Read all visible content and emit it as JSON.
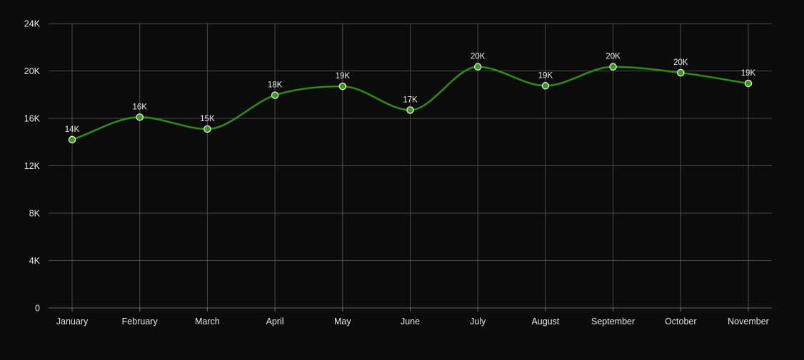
{
  "chart_data": {
    "type": "line",
    "title": "",
    "xlabel": "",
    "ylabel": "",
    "categories": [
      "January",
      "February",
      "March",
      "April",
      "May",
      "June",
      "July",
      "August",
      "September",
      "October",
      "November"
    ],
    "series": [
      {
        "values": [
          14200,
          16100,
          15100,
          17950,
          18700,
          16700,
          20350,
          18750,
          20350,
          19850,
          18950
        ],
        "labels": [
          "14K",
          "16K",
          "15K",
          "18K",
          "19K",
          "17K",
          "20K",
          "19K",
          "20K",
          "20K",
          "19K"
        ]
      }
    ],
    "ylim": [
      0,
      24000
    ],
    "yticks": [
      0,
      4000,
      8000,
      12000,
      16000,
      20000,
      24000
    ],
    "ytick_labels": [
      "0",
      "4K",
      "8K",
      "12K",
      "16K",
      "20K",
      "24K"
    ],
    "grid": true,
    "smooth": true,
    "line_color": "#2f8a12",
    "point_color": "#3d9a1c",
    "background_color": "#0b0b0b"
  }
}
